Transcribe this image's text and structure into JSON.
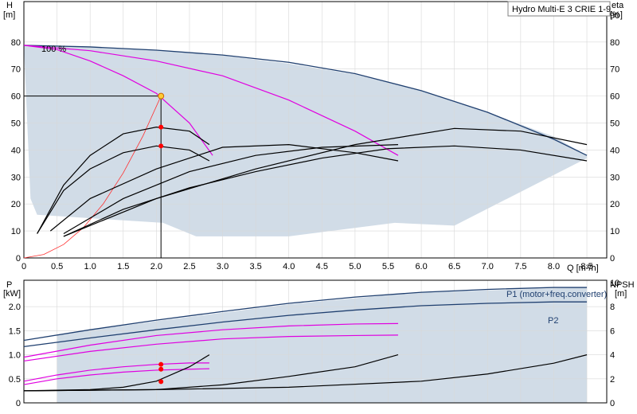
{
  "chart_data": [
    {
      "type": "line",
      "title": "Hydro Multi-E 3 CRIE 1-9",
      "xlabel": "Q [m³/h]",
      "ylabel": "H\n[m]",
      "y2label": "eta\n[%]",
      "xlim": [
        0,
        8.8
      ],
      "ylim": [
        0,
        95
      ],
      "y2lim": [
        0,
        95
      ],
      "x_ticks": [
        0,
        0.5,
        1.0,
        1.5,
        2.0,
        2.5,
        3.0,
        3.5,
        4.0,
        4.5,
        5.0,
        5.5,
        6.0,
        6.5,
        7.0,
        7.5,
        8.0,
        8.5
      ],
      "x_tick_labels": [
        "0",
        "0.5",
        "1.0",
        "1.5",
        "2.0",
        "2.5",
        "3.0",
        "3.5",
        "4.0",
        "4.5",
        "5.0",
        "5.5",
        "6.0",
        "6.5",
        "7.0",
        "7.5",
        "8.0",
        "8.5"
      ],
      "y_ticks": [
        0,
        10,
        20,
        30,
        40,
        50,
        60,
        70,
        80
      ],
      "y2_ticks": [
        0,
        10,
        20,
        30,
        40,
        50,
        60,
        70,
        80,
        90
      ],
      "grid": true,
      "annotation": "100 %",
      "operating_point": {
        "x": 2.07,
        "y": 60
      },
      "system_curve": {
        "x": [
          0,
          0.3,
          0.6,
          0.9,
          1.2,
          1.5,
          1.8,
          2.07
        ],
        "values": [
          0,
          1.3,
          5.0,
          11.3,
          20.1,
          31.5,
          45.3,
          60
        ]
      },
      "area": {
        "x": [
          0,
          0.1,
          0.2,
          2.1,
          2.6,
          4.0,
          5.6,
          6.5,
          8.5,
          8.5,
          8.0,
          7.0,
          6.0,
          5.0,
          4.0,
          3.0,
          2.0,
          1.0,
          0.3,
          0.05
        ],
        "values": [
          78.8,
          22,
          16,
          13,
          8,
          8,
          13,
          12,
          37,
          38,
          45,
          54,
          62,
          68,
          72,
          75,
          77,
          78.2,
          78.7,
          78.8
        ]
      },
      "series": [
        {
          "color": "#1f3f6f",
          "x": [
            0,
            1,
            2,
            3,
            4,
            5,
            6,
            7,
            8,
            8.5
          ],
          "values": [
            78.8,
            78.2,
            77.0,
            75.2,
            72.5,
            68.3,
            62.0,
            54.0,
            44.0,
            38.0
          ]
        },
        {
          "color": "#e000e0",
          "x": [
            0,
            0.5,
            1.0,
            1.5,
            2.0,
            2.5,
            2.85
          ],
          "values": [
            78.8,
            77.2,
            73.0,
            67.5,
            61.0,
            50.0,
            38.0
          ]
        },
        {
          "color": "#e000e0",
          "x": [
            0,
            1,
            2,
            3,
            4,
            5,
            5.65
          ],
          "values": [
            78.8,
            76.8,
            73.0,
            67.5,
            58.5,
            47.0,
            38.0
          ]
        },
        {
          "color": "#000000",
          "x": [
            0.2,
            0.6,
            1.0,
            1.5,
            2.0,
            2.5,
            2.8
          ],
          "values": [
            9,
            27,
            38,
            46,
            48.5,
            47,
            42
          ]
        },
        {
          "color": "#000000",
          "x": [
            0.2,
            0.6,
            1.0,
            1.5,
            2.0,
            2.5,
            2.8
          ],
          "values": [
            9,
            25,
            33,
            39,
            41.5,
            40,
            36
          ]
        },
        {
          "color": "#000000",
          "x": [
            0.4,
            1.0,
            2.0,
            3.0,
            4.0,
            5.0,
            5.65
          ],
          "values": [
            10,
            22,
            33,
            41,
            42,
            39,
            36
          ]
        },
        {
          "color": "#000000",
          "x": [
            0.6,
            1.5,
            2.5,
            3.5,
            4.5,
            5.65
          ],
          "values": [
            9,
            22,
            32,
            38,
            41,
            42
          ]
        },
        {
          "color": "#000000",
          "x": [
            0.6,
            1.5,
            2.5,
            3.5,
            4.5,
            5.5,
            6.5,
            7.5,
            8.5
          ],
          "values": [
            8,
            18,
            26,
            32,
            37,
            40.5,
            41.5,
            40,
            36
          ]
        },
        {
          "color": "#000000",
          "x": [
            0.6,
            2.0,
            3.5,
            5.0,
            6.5,
            7.5,
            8.5
          ],
          "values": [
            8,
            22,
            33,
            42,
            48,
            47,
            42
          ]
        }
      ],
      "markers": [
        {
          "x": 2.07,
          "y": 48.5,
          "color": "#ff0000"
        },
        {
          "x": 2.07,
          "y": 41.5,
          "color": "#ff0000"
        }
      ]
    },
    {
      "type": "line",
      "xlabel": "",
      "ylabel": "P\n[kW]",
      "y2label": "NPSH\n[m]",
      "xlim": [
        0,
        8.8
      ],
      "ylim": [
        0,
        2.55
      ],
      "y2lim": [
        0,
        10.2
      ],
      "y_ticks": [
        0,
        0.5,
        1.0,
        1.5,
        2.0
      ],
      "y_tick_labels": [
        "0",
        "0.5",
        "1.0",
        "1.5",
        "2.0"
      ],
      "y2_ticks": [
        0,
        2,
        4,
        6,
        8,
        10
      ],
      "grid": true,
      "area": {
        "x": [
          0.5,
          2.0,
          4.0,
          6.0,
          8.5,
          8.5,
          8.5,
          0.5
        ],
        "values": [
          1.42,
          1.7,
          2.05,
          2.3,
          2.4,
          2.45,
          0,
          0
        ]
      },
      "series": [
        {
          "name": "P1 (motor+freq.converter)",
          "color": "#1f3f6f",
          "x": [
            0,
            1,
            2,
            3,
            4,
            5,
            6,
            7,
            8,
            8.5
          ],
          "values": [
            1.3,
            1.52,
            1.72,
            1.9,
            2.07,
            2.2,
            2.3,
            2.36,
            2.4,
            2.4
          ]
        },
        {
          "name": "P2",
          "color": "#1f3f6f",
          "x": [
            0,
            1,
            2,
            3,
            4,
            5,
            6,
            7,
            8,
            8.5
          ],
          "values": [
            1.17,
            1.35,
            1.52,
            1.68,
            1.82,
            1.93,
            2.02,
            2.07,
            2.1,
            2.1
          ]
        },
        {
          "color": "#e000e0",
          "x": [
            0,
            1,
            2,
            3,
            4,
            5,
            5.65
          ],
          "values": [
            0.95,
            1.2,
            1.4,
            1.52,
            1.6,
            1.64,
            1.65
          ]
        },
        {
          "color": "#e000e0",
          "x": [
            0,
            1,
            2,
            3,
            4,
            5,
            5.65
          ],
          "values": [
            0.87,
            1.07,
            1.22,
            1.33,
            1.38,
            1.4,
            1.41
          ]
        },
        {
          "color": "#e000e0",
          "x": [
            0,
            0.5,
            1.0,
            1.5,
            2.0,
            2.5,
            2.8
          ],
          "values": [
            0.45,
            0.58,
            0.68,
            0.75,
            0.8,
            0.83,
            0.83
          ]
        },
        {
          "color": "#e000e0",
          "x": [
            0,
            0.5,
            1.0,
            1.5,
            2.0,
            2.5,
            2.8
          ],
          "values": [
            0.38,
            0.5,
            0.58,
            0.64,
            0.68,
            0.7,
            0.71
          ]
        },
        {
          "color": "#000000",
          "x": [
            0,
            1.0,
            1.5,
            2.0,
            2.5,
            2.8
          ],
          "axis": "y2",
          "values": [
            1.0,
            1.1,
            1.3,
            1.8,
            3.0,
            4.0
          ]
        },
        {
          "color": "#000000",
          "x": [
            0,
            2,
            3,
            4,
            5,
            5.65
          ],
          "axis": "y2",
          "values": [
            1.0,
            1.1,
            1.5,
            2.2,
            3.0,
            4.0
          ]
        },
        {
          "color": "#000000",
          "x": [
            0,
            2,
            4,
            6,
            7,
            8,
            8.5
          ],
          "axis": "y2",
          "values": [
            1.0,
            1.1,
            1.3,
            1.8,
            2.4,
            3.3,
            4.0
          ]
        }
      ],
      "markers": [
        {
          "x": 2.07,
          "y": 0.8,
          "color": "#ff0000"
        },
        {
          "x": 2.07,
          "y": 0.7,
          "color": "#ff0000"
        },
        {
          "x": 2.07,
          "y": 0.44,
          "color": "#ff0000"
        }
      ]
    }
  ]
}
